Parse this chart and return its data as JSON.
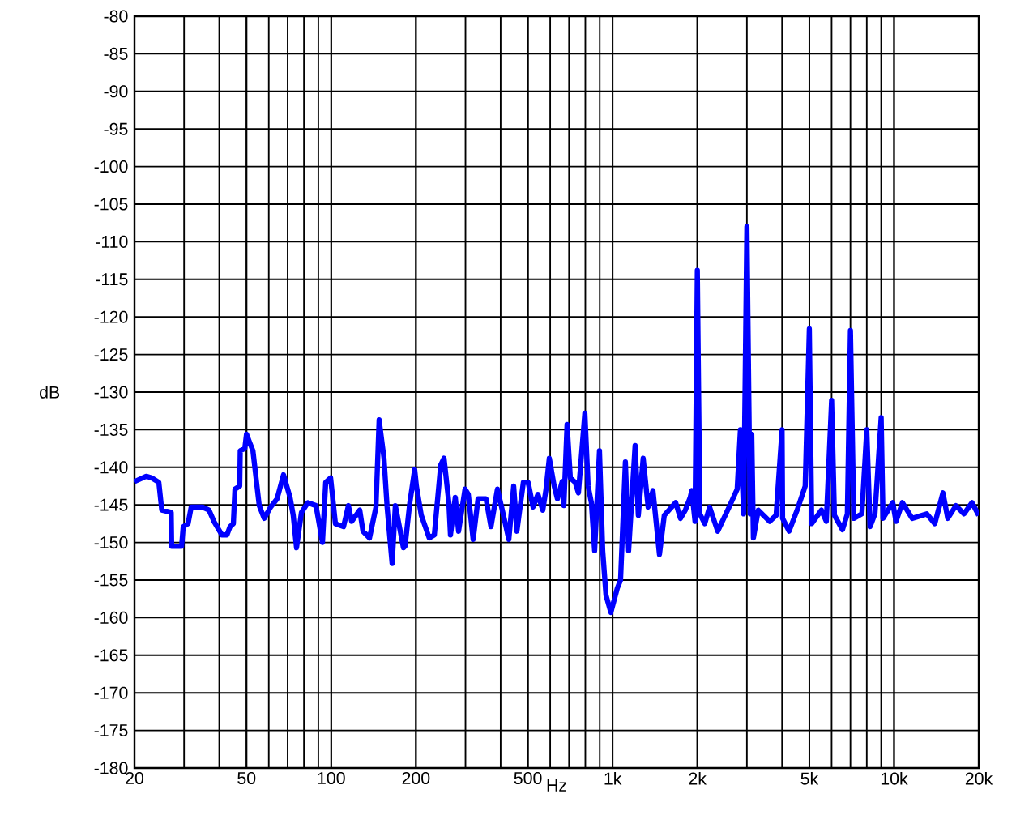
{
  "chart_data": {
    "type": "line",
    "xlabel": "Hz",
    "ylabel": "dB",
    "log": "x",
    "grid": true,
    "xlim": [
      20,
      20000
    ],
    "ylim": [
      -180,
      -80
    ],
    "xticks": [
      20,
      50,
      100,
      200,
      500,
      {
        "value": 1000,
        "label": "1k"
      },
      {
        "value": 2000,
        "label": "2k"
      },
      {
        "value": 5000,
        "label": "5k"
      },
      {
        "value": 10000,
        "label": "10k"
      },
      {
        "value": 20000,
        "label": "20k"
      }
    ],
    "yticks": [
      -180,
      -175,
      -170,
      -165,
      -160,
      -155,
      -150,
      -145,
      -140,
      -135,
      -130,
      -125,
      -120,
      -115,
      -110,
      -105,
      -100,
      -95,
      -90,
      -85,
      -80
    ],
    "series": [
      {
        "color": "#0000ff",
        "x": [
          20,
          22,
          23,
          24.4,
          25,
          27,
          27.1,
          29.4,
          29.8,
          31,
          31.8,
          34.9,
          36.8,
          38.3,
          40.9,
          42.6,
          43.7,
          44.9,
          45.5,
          47.3,
          47.5,
          49.3,
          50,
          51.3,
          52.7,
          55.5,
          57.8,
          60.9,
          64.2,
          67.7,
          71.4,
          73.3,
          75.3,
          78.4,
          82.6,
          88.3,
          93.1,
          95.6,
          99.5,
          103.5,
          110.6,
          115.1,
          118.2,
          126.3,
          129.7,
          136.8,
          144.2,
          148,
          154,
          158,
          164.6,
          169,
          180.6,
          183,
          190.3,
          198,
          200.8,
          209,
          223,
          232.5,
          245,
          251.7,
          261.8,
          265.3,
          276,
          283.5,
          298.9,
          307,
          319.5,
          332.5,
          355,
          369.6,
          389.7,
          405.5,
          427.7,
          445,
          457,
          481.7,
          501,
          521.5,
          542.8,
          564.8,
          580,
          595.7,
          620,
          636.5,
          662,
          671,
          689,
          707.5,
          736,
          756,
          797,
          818.5,
          840.5,
          863,
          898,
          922,
          947,
          985.5,
          1039,
          1067,
          1110,
          1140,
          1202,
          1234,
          1284,
          1337,
          1391,
          1467,
          1526,
          1675,
          1742,
          1813,
          1887,
          1911,
          1963,
          2000,
          2042,
          2125,
          2211,
          2363,
          2594,
          2771,
          2845,
          2922,
          3000,
          3081,
          3122,
          3164,
          3292,
          3612,
          3810,
          4000,
          4017,
          4236,
          4525,
          4834,
          5000,
          5098,
          5521,
          5745,
          6000,
          6140,
          6558,
          6825,
          7000,
          7198,
          7687,
          8000,
          8219,
          8553,
          9000,
          9138,
          9895,
          10160,
          10710,
          11600,
          13070,
          13960,
          14920,
          15520,
          16590,
          17720,
          18930,
          20000
        ],
        "values": [
          -141.9,
          -141.2,
          -141.4,
          -142,
          -145.7,
          -146,
          -150.5,
          -150.5,
          -147.9,
          -147.5,
          -145.3,
          -145.3,
          -145.7,
          -147.2,
          -149,
          -149,
          -147.9,
          -147.5,
          -142.9,
          -142.5,
          -137.8,
          -137.5,
          -135.6,
          -136.7,
          -137.8,
          -145.1,
          -146.8,
          -145.3,
          -144.2,
          -141,
          -144,
          -146.4,
          -150.7,
          -146,
          -144.7,
          -145.1,
          -150,
          -142,
          -141.4,
          -147.5,
          -147.9,
          -145.1,
          -147.2,
          -145.7,
          -148.5,
          -149.4,
          -145.3,
          -133.7,
          -138.8,
          -145.3,
          -152.8,
          -145.1,
          -150.7,
          -150.5,
          -144.7,
          -140.3,
          -142.5,
          -146.4,
          -149.4,
          -149,
          -139.7,
          -138.8,
          -144.7,
          -149,
          -144,
          -148.5,
          -142.9,
          -143.6,
          -149.6,
          -144.2,
          -144.2,
          -147.9,
          -142.9,
          -145.7,
          -149.6,
          -142.5,
          -148.5,
          -142,
          -142,
          -145.3,
          -143.6,
          -145.7,
          -142.9,
          -138.8,
          -142.5,
          -144.2,
          -141.9,
          -145.1,
          -134.3,
          -141.4,
          -142,
          -143.4,
          -132.8,
          -142.5,
          -144.7,
          -151.1,
          -137.8,
          -151.1,
          -157,
          -159.3,
          -156.1,
          -155,
          -139.3,
          -151.1,
          -137.1,
          -146.4,
          -138.8,
          -145.3,
          -143.1,
          -151.6,
          -146.4,
          -144.7,
          -146.8,
          -145.7,
          -144,
          -143.1,
          -147.2,
          -113.8,
          -146.2,
          -147.5,
          -145.3,
          -148.5,
          -145.3,
          -142.9,
          -135,
          -146.2,
          -108,
          -146.2,
          -135.6,
          -149.4,
          -145.7,
          -147.2,
          -146.4,
          -135,
          -146.8,
          -148.5,
          -145.7,
          -142.5,
          -121.6,
          -147.5,
          -145.7,
          -147.2,
          -131.1,
          -146.4,
          -148.3,
          -146.2,
          -121.8,
          -146.8,
          -146.2,
          -135,
          -147.9,
          -146.2,
          -133.4,
          -146.8,
          -144.7,
          -147.2,
          -144.7,
          -146.8,
          -146.2,
          -147.5,
          -143.4,
          -146.8,
          -145.1,
          -146.2,
          -144.7,
          -146.4
        ]
      }
    ]
  }
}
